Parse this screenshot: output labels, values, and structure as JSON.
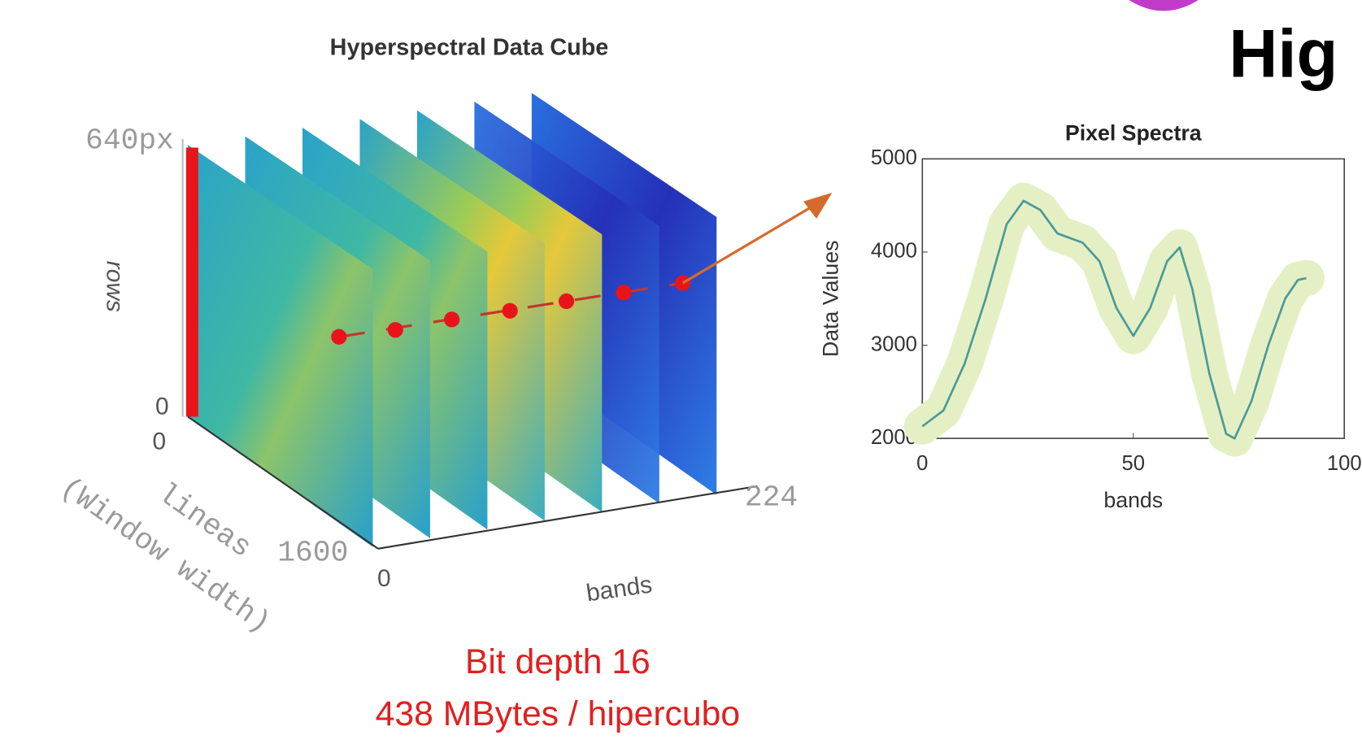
{
  "heading": "Hig",
  "cube": {
    "title": "Hyperspectral Data Cube",
    "rows_max": "640px",
    "rows_min": "0",
    "rows_label": "rows",
    "lineas_min": "0",
    "lineas_label": "lineas",
    "lineas_max": "1600",
    "lineas_note": "(Window width)",
    "bands_min": "0",
    "bands_max": "224",
    "bands_label": "bands",
    "caption": [
      "Bit depth 16",
      "438 MBytes / hipercubo"
    ]
  },
  "chart_data": {
    "type": "line",
    "title": "Pixel Spectra",
    "xlabel": "bands",
    "ylabel": "Data Values",
    "x": [
      0,
      5,
      10,
      15,
      20,
      24,
      28,
      32,
      38,
      42,
      46,
      50,
      54,
      58,
      61,
      64,
      68,
      72,
      74,
      78,
      82,
      86,
      89,
      91
    ],
    "values": [
      2130,
      2300,
      2800,
      3500,
      4300,
      4550,
      4450,
      4200,
      4100,
      3900,
      3400,
      3100,
      3400,
      3900,
      4050,
      3600,
      2700,
      2050,
      2000,
      2400,
      3000,
      3500,
      3700,
      3720
    ],
    "color": "#4a9a9a",
    "highlight_color": "#e4f0c4",
    "xlim": [
      0,
      100
    ],
    "ylim": [
      2000,
      5000
    ],
    "xticks": [
      0,
      50,
      100
    ],
    "yticks": [
      2000,
      3000,
      4000,
      5000
    ]
  }
}
